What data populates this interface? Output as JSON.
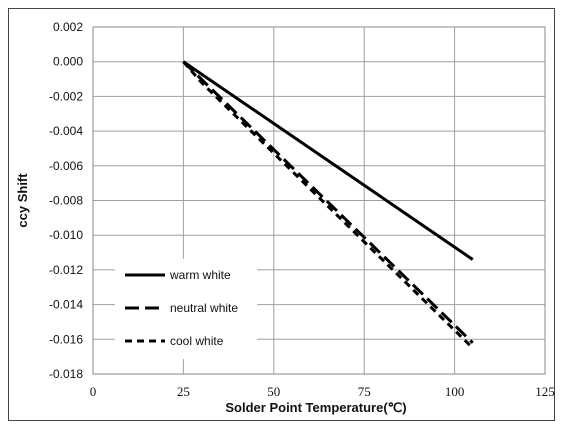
{
  "chart_data": {
    "type": "line",
    "xlabel": "Solder Point Temperature(℃)",
    "ylabel": "ccy Shift",
    "xlim": [
      0,
      125
    ],
    "ylim": [
      -0.018,
      0.002
    ],
    "x_ticks": [
      "0",
      "25",
      "50",
      "75",
      "100",
      "125"
    ],
    "y_ticks": [
      "0.002",
      "0.000",
      "-0.002",
      "-0.004",
      "-0.006",
      "-0.008",
      "-0.010",
      "-0.012",
      "-0.014",
      "-0.016",
      "-0.018"
    ],
    "grid": true,
    "legend_position": "bottom-left",
    "series": [
      {
        "name": "warm white",
        "style": "solid",
        "color": "#000000",
        "x": [
          25,
          105
        ],
        "y": [
          0.0,
          -0.0114
        ]
      },
      {
        "name": "neutral white",
        "style": "long-dash",
        "color": "#000000",
        "x": [
          25,
          105
        ],
        "y": [
          0.0,
          -0.0162
        ]
      },
      {
        "name": "cool white",
        "style": "short-dash",
        "color": "#000000",
        "x": [
          25,
          30,
          105
        ],
        "y": [
          0.0,
          -0.0012,
          -0.0165
        ]
      }
    ]
  }
}
